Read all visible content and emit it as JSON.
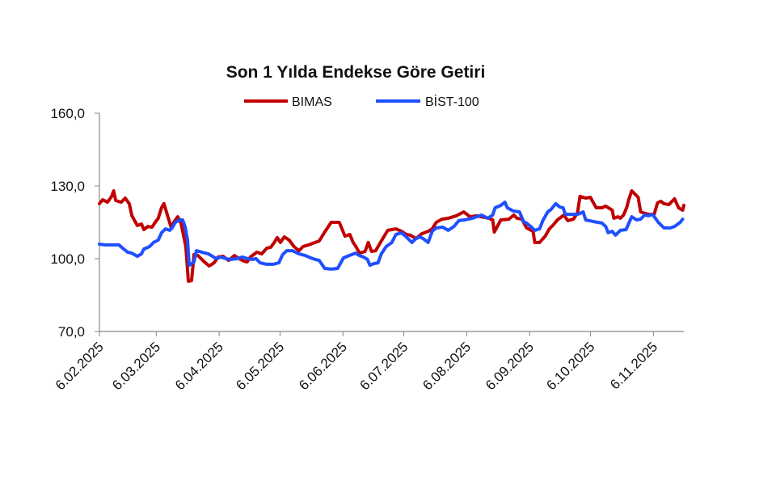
{
  "chart_data": {
    "type": "line",
    "title": "Son 1 Yılda Endekse Göre Getiri",
    "xlabel": "",
    "ylabel": "",
    "x_unit": "days since 6.02.2025",
    "xlim": [
      0,
      288
    ],
    "ylim": [
      70,
      160
    ],
    "yticks": [
      70,
      100,
      130,
      160
    ],
    "ytick_labels": [
      "70,0",
      "100,0",
      "130,0",
      "160,0"
    ],
    "xticks": [
      0,
      28,
      59,
      89,
      120,
      150,
      181,
      212,
      242,
      273
    ],
    "xtick_labels": [
      "6.02.2025",
      "6.03.2025",
      "6.04.2025",
      "6.05.2025",
      "6.06.2025",
      "6.07.2025",
      "6.08.2025",
      "6.09.2025",
      "6.10.2025",
      "6.11.2025"
    ],
    "grid": false,
    "legend_position": "top-center",
    "series": [
      {
        "name": "BIMAS",
        "color": "#c00000",
        "points": [
          [
            0,
            122.7
          ],
          [
            1.6,
            124.3
          ],
          [
            4,
            123.3
          ],
          [
            6,
            125.7
          ],
          [
            7,
            128.0
          ],
          [
            8,
            124.0
          ],
          [
            10.7,
            123.3
          ],
          [
            12.7,
            125.0
          ],
          [
            14.7,
            122.7
          ],
          [
            16,
            117.7
          ],
          [
            18.7,
            113.7
          ],
          [
            20.7,
            114.3
          ],
          [
            21.9,
            112.0
          ],
          [
            23.9,
            113.3
          ],
          [
            25.9,
            113.0
          ],
          [
            27.5,
            115.0
          ],
          [
            29,
            116.7
          ],
          [
            30.6,
            121.0
          ],
          [
            31.8,
            122.7
          ],
          [
            33.4,
            118.3
          ],
          [
            35.4,
            112.7
          ],
          [
            36.6,
            115.0
          ],
          [
            38.6,
            117.3
          ],
          [
            40.2,
            114.7
          ],
          [
            42.6,
            105.0
          ],
          [
            43.8,
            90.7
          ],
          [
            45.4,
            91.0
          ],
          [
            46.6,
            101.7
          ],
          [
            48.6,
            101.3
          ],
          [
            51.3,
            99.0
          ],
          [
            54.1,
            97.0
          ],
          [
            56.5,
            98.3
          ],
          [
            58.5,
            100.7
          ],
          [
            60.9,
            101.0
          ],
          [
            63.7,
            99.3
          ],
          [
            66.5,
            101.3
          ],
          [
            68.9,
            100.0
          ],
          [
            71.2,
            99.0
          ],
          [
            72.8,
            98.7
          ],
          [
            74.4,
            100.7
          ],
          [
            77.6,
            102.7
          ],
          [
            80,
            102.0
          ],
          [
            82.4,
            104.3
          ],
          [
            84.4,
            104.7
          ],
          [
            86.4,
            107.0
          ],
          [
            87.6,
            108.7
          ],
          [
            89.2,
            106.7
          ],
          [
            91.1,
            109.0
          ],
          [
            93.5,
            107.7
          ],
          [
            95.9,
            105.0
          ],
          [
            98.3,
            103.3
          ],
          [
            100.3,
            105.0
          ],
          [
            103.1,
            105.7
          ],
          [
            106.3,
            106.7
          ],
          [
            108.3,
            107.3
          ],
          [
            111,
            111.0
          ],
          [
            114.2,
            115.0
          ],
          [
            118.2,
            115.0
          ],
          [
            121,
            109.3
          ],
          [
            123.4,
            110.0
          ],
          [
            125,
            106.7
          ],
          [
            126.2,
            105.3
          ],
          [
            128.2,
            102.3
          ],
          [
            130.9,
            103.0
          ],
          [
            132.5,
            106.7
          ],
          [
            134.1,
            103.0
          ],
          [
            136.1,
            103.3
          ],
          [
            138.9,
            107.3
          ],
          [
            142.1,
            111.7
          ],
          [
            146.1,
            112.3
          ],
          [
            148.9,
            111.3
          ],
          [
            151.2,
            110.0
          ],
          [
            153.2,
            109.7
          ],
          [
            156,
            108.3
          ],
          [
            158.8,
            110.3
          ],
          [
            162,
            111.3
          ],
          [
            164,
            112.3
          ],
          [
            166,
            115.0
          ],
          [
            168.8,
            116.3
          ],
          [
            171.9,
            116.7
          ],
          [
            175.9,
            117.7
          ],
          [
            179.5,
            119.3
          ],
          [
            182.7,
            117.3
          ],
          [
            185.9,
            117.7
          ],
          [
            191.8,
            116.7
          ],
          [
            193.8,
            116.0
          ],
          [
            194.6,
            111.0
          ],
          [
            197.8,
            116.0
          ],
          [
            201.8,
            116.3
          ],
          [
            204.2,
            118.0
          ],
          [
            205.8,
            116.7
          ],
          [
            208.2,
            116.3
          ],
          [
            210.5,
            112.7
          ],
          [
            213.7,
            111.3
          ],
          [
            214.5,
            106.7
          ],
          [
            216.9,
            106.7
          ],
          [
            219.7,
            109.3
          ],
          [
            221.7,
            112.3
          ],
          [
            223.7,
            114.0
          ],
          [
            225.7,
            116.0
          ],
          [
            228.9,
            118.0
          ],
          [
            230.8,
            115.7
          ],
          [
            233.6,
            116.3
          ],
          [
            235.6,
            119.0
          ],
          [
            236.8,
            125.7
          ],
          [
            239.6,
            125.0
          ],
          [
            242,
            125.3
          ],
          [
            242.8,
            124.0
          ],
          [
            244.8,
            121.0
          ],
          [
            247.6,
            121.0
          ],
          [
            249.5,
            121.7
          ],
          [
            252.7,
            120.0
          ],
          [
            253.5,
            116.7
          ],
          [
            255.5,
            117.3
          ],
          [
            256.7,
            116.7
          ],
          [
            258.3,
            118.0
          ],
          [
            259.9,
            121.3
          ],
          [
            260.7,
            124.0
          ],
          [
            262.3,
            128.0
          ],
          [
            265.5,
            125.3
          ],
          [
            266.7,
            119.3
          ],
          [
            270.6,
            118.3
          ],
          [
            273.4,
            118.3
          ],
          [
            275,
            123.0
          ],
          [
            276.6,
            123.7
          ],
          [
            278.2,
            122.7
          ],
          [
            280.6,
            122.3
          ],
          [
            283.4,
            124.7
          ],
          [
            285.4,
            121.0
          ],
          [
            287.4,
            120.0
          ],
          [
            288,
            122.0
          ]
        ]
      },
      {
        "name": "BİST-100",
        "color": "#1f4fff",
        "points": [
          [
            0,
            106.0
          ],
          [
            2.8,
            105.7
          ],
          [
            6.8,
            105.7
          ],
          [
            9.6,
            105.7
          ],
          [
            11.5,
            104.3
          ],
          [
            13.9,
            102.7
          ],
          [
            15.9,
            102.3
          ],
          [
            18.7,
            101.0
          ],
          [
            20.7,
            102.0
          ],
          [
            21.9,
            104.0
          ],
          [
            24.7,
            105.0
          ],
          [
            26.7,
            106.7
          ],
          [
            29,
            107.7
          ],
          [
            30.6,
            110.7
          ],
          [
            32.6,
            112.3
          ],
          [
            34.6,
            111.7
          ],
          [
            35.8,
            112.7
          ],
          [
            37.4,
            115.0
          ],
          [
            39.4,
            116.0
          ],
          [
            41,
            116.0
          ],
          [
            42.2,
            113.3
          ],
          [
            43.4,
            107.7
          ],
          [
            44.2,
            97.3
          ],
          [
            46.6,
            98.7
          ],
          [
            47.8,
            103.3
          ],
          [
            50.5,
            102.7
          ],
          [
            53.7,
            102.0
          ],
          [
            55.7,
            101.0
          ],
          [
            57.7,
            100.0
          ],
          [
            59.7,
            100.7
          ],
          [
            62.5,
            100.0
          ],
          [
            64.5,
            99.7
          ],
          [
            67.7,
            100.0
          ],
          [
            70.4,
            100.7
          ],
          [
            73.2,
            100.0
          ],
          [
            75.2,
            99.7
          ],
          [
            77.2,
            100.0
          ],
          [
            79.2,
            98.3
          ],
          [
            82.4,
            97.7
          ],
          [
            85.6,
            97.7
          ],
          [
            88.4,
            98.3
          ],
          [
            90.3,
            101.7
          ],
          [
            92.3,
            103.3
          ],
          [
            95.1,
            103.3
          ],
          [
            98.3,
            102.0
          ],
          [
            101.5,
            101.3
          ],
          [
            104.3,
            100.3
          ],
          [
            106.3,
            99.7
          ],
          [
            108.3,
            99.3
          ],
          [
            111,
            96.0
          ],
          [
            114.2,
            95.7
          ],
          [
            117.4,
            96.0
          ],
          [
            120.2,
            100.3
          ],
          [
            123,
            101.3
          ],
          [
            126.2,
            102.3
          ],
          [
            128.2,
            101.3
          ],
          [
            130.1,
            100.7
          ],
          [
            132.1,
            99.7
          ],
          [
            133.3,
            97.3
          ],
          [
            135.3,
            98.0
          ],
          [
            137.3,
            98.3
          ],
          [
            138.9,
            102.0
          ],
          [
            141.3,
            105.0
          ],
          [
            144.1,
            106.7
          ],
          [
            146.1,
            110.0
          ],
          [
            148.9,
            110.7
          ],
          [
            151.2,
            109.0
          ],
          [
            154,
            106.7
          ],
          [
            156,
            108.3
          ],
          [
            158,
            109.0
          ],
          [
            160,
            108.0
          ],
          [
            162,
            106.7
          ],
          [
            164,
            111.3
          ],
          [
            166,
            112.7
          ],
          [
            169.2,
            113.0
          ],
          [
            171.9,
            111.7
          ],
          [
            174.7,
            113.3
          ],
          [
            177.1,
            115.7
          ],
          [
            179.9,
            116.0
          ],
          [
            183.9,
            116.7
          ],
          [
            185.9,
            117.3
          ],
          [
            188.3,
            118.0
          ],
          [
            191.4,
            116.7
          ],
          [
            193.8,
            118.0
          ],
          [
            195,
            121.0
          ],
          [
            197.8,
            122.0
          ],
          [
            199.8,
            123.3
          ],
          [
            201,
            121.0
          ],
          [
            203.8,
            119.7
          ],
          [
            207,
            119.3
          ],
          [
            209,
            115.3
          ],
          [
            210.5,
            114.7
          ],
          [
            212.9,
            113.0
          ],
          [
            214.5,
            111.7
          ],
          [
            216.9,
            112.3
          ],
          [
            218.5,
            115.7
          ],
          [
            220.9,
            119.3
          ],
          [
            222.5,
            120.3
          ],
          [
            224.9,
            122.7
          ],
          [
            226.9,
            121.3
          ],
          [
            228.5,
            121.0
          ],
          [
            229.6,
            118.3
          ],
          [
            233.6,
            118.3
          ],
          [
            235.6,
            118.3
          ],
          [
            238.4,
            119.3
          ],
          [
            239.6,
            116.0
          ],
          [
            243.6,
            115.3
          ],
          [
            247.6,
            114.7
          ],
          [
            249.5,
            113.3
          ],
          [
            250.7,
            110.7
          ],
          [
            252.7,
            111.3
          ],
          [
            254.3,
            109.7
          ],
          [
            256.7,
            111.7
          ],
          [
            259.5,
            112.0
          ],
          [
            260.7,
            114.3
          ],
          [
            262.3,
            117.3
          ],
          [
            264.7,
            116.0
          ],
          [
            266.7,
            116.3
          ],
          [
            268.7,
            118.0
          ],
          [
            270.6,
            117.7
          ],
          [
            272.6,
            118.3
          ],
          [
            275.4,
            115.0
          ],
          [
            278.2,
            112.7
          ],
          [
            281.4,
            112.7
          ],
          [
            283.4,
            113.3
          ],
          [
            286.2,
            115.0
          ],
          [
            287.4,
            116.3
          ]
        ]
      }
    ]
  }
}
